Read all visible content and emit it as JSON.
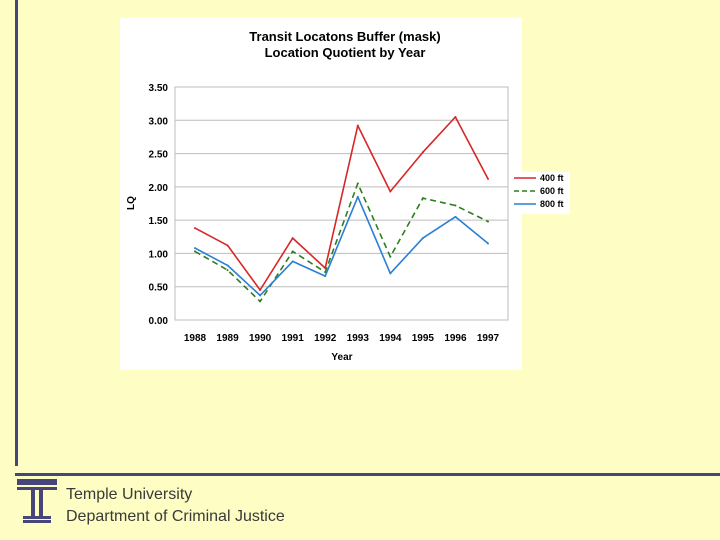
{
  "footer": {
    "line1": "Temple University",
    "line2": "Department of Criminal Justice"
  },
  "colors": {
    "background": "#fdfdc4",
    "rule": "#46467a",
    "series_400": "#d62728",
    "series_600": "#2e7d1e",
    "series_800": "#2a7fd4"
  },
  "chart_data": {
    "type": "line",
    "title": "Transit Locatons Buffer (mask)",
    "subtitle": "Location Quotient by Year",
    "xlabel": "Year",
    "ylabel": "LQ",
    "x": [
      "1988",
      "1989",
      "1990",
      "1991",
      "1992",
      "1993",
      "1994",
      "1995",
      "1996",
      "1997"
    ],
    "ylim": [
      0,
      3.5
    ],
    "yticks": [
      "0.00",
      "0.50",
      "1.00",
      "1.50",
      "2.00",
      "2.50",
      "3.00",
      "3.50"
    ],
    "grid": true,
    "legend": "right",
    "series": [
      {
        "name": "400 ft",
        "style": "solid",
        "color": "#d62728",
        "values": [
          1.38,
          1.12,
          0.45,
          1.23,
          0.78,
          2.92,
          1.93,
          2.52,
          3.05,
          2.12
        ]
      },
      {
        "name": "600 ft",
        "style": "dashed",
        "color": "#2e7d1e",
        "values": [
          1.03,
          0.75,
          0.28,
          1.03,
          0.72,
          2.05,
          0.95,
          1.83,
          1.72,
          1.48
        ]
      },
      {
        "name": "800 ft",
        "style": "solid",
        "color": "#2a7fd4",
        "values": [
          1.08,
          0.82,
          0.37,
          0.88,
          0.66,
          1.85,
          0.7,
          1.23,
          1.55,
          1.15
        ]
      }
    ]
  }
}
